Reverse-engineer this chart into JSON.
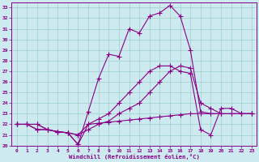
{
  "background_color": "#cdeaf0",
  "grid_color": "#9dcfca",
  "line_color": "#880088",
  "marker": "+",
  "xlim": [
    -0.5,
    23.5
  ],
  "ylim": [
    20,
    33.5
  ],
  "xticks": [
    0,
    1,
    2,
    3,
    4,
    5,
    6,
    7,
    8,
    9,
    10,
    11,
    12,
    13,
    14,
    15,
    16,
    17,
    18,
    19,
    20,
    21,
    22,
    23
  ],
  "yticks": [
    20,
    21,
    22,
    23,
    24,
    25,
    26,
    27,
    28,
    29,
    30,
    31,
    32,
    33
  ],
  "xlabel": "Windchill (Refroidissement éolien,°C)",
  "series": [
    [
      [
        0,
        22
      ],
      [
        1,
        22
      ],
      [
        2,
        22
      ],
      [
        3,
        21.5
      ],
      [
        4,
        21.3
      ],
      [
        5,
        21.2
      ],
      [
        6,
        20.1
      ],
      [
        7,
        23.2
      ],
      [
        8,
        26.3
      ],
      [
        9,
        28.6
      ],
      [
        10,
        28.4
      ],
      [
        11,
        31.0
      ],
      [
        12,
        30.6
      ],
      [
        13,
        32.2
      ],
      [
        14,
        32.5
      ],
      [
        15,
        33.2
      ],
      [
        16,
        32.2
      ],
      [
        17,
        29.0
      ],
      [
        18,
        23.2
      ],
      [
        19,
        23.0
      ],
      [
        20,
        23.0
      ]
    ],
    [
      [
        0,
        22
      ],
      [
        1,
        22
      ],
      [
        2,
        21.5
      ],
      [
        3,
        21.5
      ],
      [
        4,
        21.3
      ],
      [
        5,
        21.2
      ],
      [
        6,
        21.0
      ],
      [
        7,
        22.0
      ],
      [
        8,
        22.5
      ],
      [
        9,
        23.0
      ],
      [
        10,
        24.0
      ],
      [
        11,
        25.0
      ],
      [
        12,
        26.0
      ],
      [
        13,
        27.0
      ],
      [
        14,
        27.5
      ],
      [
        15,
        27.5
      ],
      [
        16,
        27.0
      ],
      [
        17,
        26.8
      ],
      [
        18,
        21.5
      ],
      [
        19,
        21.0
      ],
      [
        20,
        23.5
      ],
      [
        21,
        23.5
      ],
      [
        22,
        23.0
      ],
      [
        23,
        23.0
      ]
    ],
    [
      [
        0,
        22
      ],
      [
        1,
        22
      ],
      [
        2,
        21.5
      ],
      [
        3,
        21.5
      ],
      [
        4,
        21.3
      ],
      [
        5,
        21.2
      ],
      [
        6,
        21.0
      ],
      [
        7,
        21.5
      ],
      [
        8,
        22.0
      ],
      [
        9,
        22.3
      ],
      [
        10,
        23.0
      ],
      [
        11,
        23.5
      ],
      [
        12,
        24.0
      ],
      [
        13,
        25.0
      ],
      [
        14,
        26.0
      ],
      [
        15,
        27.0
      ],
      [
        16,
        27.5
      ],
      [
        17,
        27.3
      ],
      [
        18,
        24.0
      ],
      [
        19,
        23.5
      ],
      [
        20,
        23.0
      ],
      [
        21,
        23.0
      ],
      [
        22,
        23.0
      ],
      [
        23,
        23.0
      ]
    ],
    [
      [
        0,
        22
      ],
      [
        1,
        22
      ],
      [
        2,
        22
      ],
      [
        3,
        21.5
      ],
      [
        4,
        21.3
      ],
      [
        5,
        21.2
      ],
      [
        6,
        20.1
      ],
      [
        7,
        22.0
      ],
      [
        8,
        22.1
      ],
      [
        9,
        22.2
      ],
      [
        10,
        22.3
      ],
      [
        11,
        22.4
      ],
      [
        12,
        22.5
      ],
      [
        13,
        22.6
      ],
      [
        14,
        22.7
      ],
      [
        15,
        22.8
      ],
      [
        16,
        22.9
      ],
      [
        17,
        23.0
      ],
      [
        18,
        23.0
      ],
      [
        19,
        23.0
      ],
      [
        20,
        23.0
      ],
      [
        21,
        23.0
      ],
      [
        22,
        23.0
      ],
      [
        23,
        23.0
      ]
    ]
  ]
}
